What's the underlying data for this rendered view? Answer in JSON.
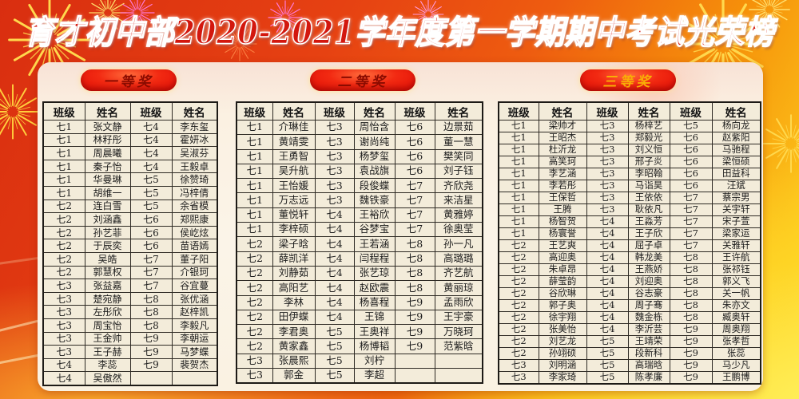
{
  "title": "育才初中部2020-2021学年度第一学期期中考试光荣榜",
  "colors": {
    "title_red": "#d3170e",
    "badge_red": "#e8150a",
    "badge_ink_dark": "#8a0b00",
    "badge_ink_gold": "#f9ae06",
    "cell_background": "#f3ecda",
    "firework_gold": "#ffd84d",
    "firework_pink": "#ff7ad9"
  },
  "sections": [
    {
      "badge": "一等奖",
      "badge_ink": "#8a0b00",
      "table": {
        "headers": [
          "班级",
          "姓名",
          "班级",
          "姓名"
        ],
        "rows": [
          [
            "七1",
            "张文静",
            "七4",
            "李东玺"
          ],
          [
            "七1",
            "林籽彤",
            "七4",
            "霍妍冰"
          ],
          [
            "七1",
            "周晨曦",
            "七4",
            "吴淑芬"
          ],
          [
            "七1",
            "秦子怡",
            "七4",
            "王毅卓"
          ],
          [
            "七1",
            "华曼琳",
            "七5",
            "徐赞琦"
          ],
          [
            "七1",
            "胡维一",
            "七5",
            "冯梓倩"
          ],
          [
            "七2",
            "连白雪",
            "七5",
            "余省模"
          ],
          [
            "七2",
            "刘涵鑫",
            "七6",
            "郑熙康"
          ],
          [
            "七2",
            "孙艺菲",
            "七6",
            "侯屹炫"
          ],
          [
            "七2",
            "于辰奕",
            "七6",
            "苗语嫣"
          ],
          [
            "七2",
            "吴皓",
            "七7",
            "董子阳"
          ],
          [
            "七2",
            "郭慧权",
            "七7",
            "介银珂"
          ],
          [
            "七3",
            "张益嘉",
            "七7",
            "谷宜蔓"
          ],
          [
            "七3",
            "楚宛静",
            "七8",
            "张优涵"
          ],
          [
            "七3",
            "左彤欣",
            "七8",
            "赵梓凯"
          ],
          [
            "七3",
            "周宝怡",
            "七8",
            "李毅凡"
          ],
          [
            "七3",
            "王金帅",
            "七9",
            "李朝运"
          ],
          [
            "七3",
            "王子赫",
            "七9",
            "马梦蝶"
          ],
          [
            "七4",
            "李蕊",
            "七9",
            "裴贺杰"
          ],
          [
            "七4",
            "吴傲然",
            "",
            ""
          ]
        ]
      }
    },
    {
      "badge": "二等奖",
      "badge_ink": "#8a0b00",
      "table": {
        "headers": [
          "班级",
          "姓名",
          "班级",
          "姓名",
          "班级",
          "姓名"
        ],
        "rows": [
          [
            "七1",
            "介琳佳",
            "七3",
            "周怡含",
            "七6",
            "边景茹"
          ],
          [
            "七1",
            "黄靖雯",
            "七3",
            "谢尚纯",
            "七6",
            "董一慧"
          ],
          [
            "七1",
            "王勇智",
            "七3",
            "杨梦玺",
            "七6",
            "樊笑同"
          ],
          [
            "七1",
            "吴升航",
            "七3",
            "袁战旗",
            "七6",
            "刘子钰"
          ],
          [
            "七1",
            "王怡媛",
            "七3",
            "段俊蝶",
            "七7",
            "齐欣尧"
          ],
          [
            "七1",
            "万志远",
            "七3",
            "魏铁豪",
            "七7",
            "来洁星"
          ],
          [
            "七1",
            "董悦轩",
            "七4",
            "王裕欣",
            "七7",
            "黄雅婷"
          ],
          [
            "七1",
            "李梓硕",
            "七4",
            "谷梦宝",
            "七7",
            "徐奥莹"
          ],
          [
            "七2",
            "梁子晗",
            "七4",
            "王若涵",
            "七8",
            "孙一凡"
          ],
          [
            "七2",
            "薛凯洋",
            "七4",
            "闫程程",
            "七8",
            "高璐璐"
          ],
          [
            "七2",
            "刘静茹",
            "七4",
            "张艺琼",
            "七8",
            "齐艺航"
          ],
          [
            "七2",
            "高阳艺",
            "七4",
            "赵欧震",
            "七8",
            "黄丽琼"
          ],
          [
            "七2",
            "李林",
            "七4",
            "杨喜程",
            "七9",
            "孟雨欣"
          ],
          [
            "七2",
            "田伊蝶",
            "七4",
            "王锦",
            "七9",
            "王宇豪"
          ],
          [
            "七2",
            "李君奥",
            "七5",
            "王奥祥",
            "七9",
            "万晓珂"
          ],
          [
            "七2",
            "黄家鑫",
            "七5",
            "杨博韬",
            "七9",
            "范紫晗"
          ],
          [
            "七3",
            "张晨熙",
            "七5",
            "刘柠",
            "",
            ""
          ],
          [
            "七3",
            "郭金",
            "七5",
            "李超",
            "",
            ""
          ]
        ]
      }
    },
    {
      "badge": "三等奖",
      "badge_ink": "#f9ae06",
      "table": {
        "headers": [
          "班级",
          "姓名",
          "班级",
          "姓名",
          "班级",
          "姓名"
        ],
        "rows": [
          [
            "七1",
            "梁帅才",
            "七3",
            "杨梓艺",
            "七5",
            "杨向龙"
          ],
          [
            "七1",
            "王昭杰",
            "七3",
            "郑毅光",
            "七6",
            "赵紫阳"
          ],
          [
            "七1",
            "杜沂龙",
            "七3",
            "刘义恒",
            "七6",
            "马驰程"
          ],
          [
            "七1",
            "高笑珂",
            "七3",
            "邢子炎",
            "七6",
            "梁恒硕"
          ],
          [
            "七1",
            "李艺涵",
            "七3",
            "李昭翰",
            "七6",
            "田益科"
          ],
          [
            "七1",
            "李若彤",
            "七3",
            "马诣昊",
            "七6",
            "汪斌"
          ],
          [
            "七1",
            "王保哲",
            "七3",
            "王依依",
            "七7",
            "蔡宗男"
          ],
          [
            "七1",
            "王腾",
            "七3",
            "耿依凡",
            "七7",
            "关宇轩"
          ],
          [
            "七1",
            "杨智贺",
            "七4",
            "王淼芳",
            "七7",
            "宋子萱"
          ],
          [
            "七1",
            "杨寰誉",
            "七4",
            "王子欣",
            "七7",
            "梁家运"
          ],
          [
            "七2",
            "王艺爽",
            "七4",
            "屈子卓",
            "七7",
            "关雅轩"
          ],
          [
            "七2",
            "高迎奥",
            "七4",
            "韩龙美",
            "七8",
            "王许航"
          ],
          [
            "七2",
            "朱卓昂",
            "七4",
            "王燕娇",
            "七8",
            "张祁钰"
          ],
          [
            "七2",
            "薛莹韵",
            "七4",
            "刘迎奥",
            "七8",
            "郭义飞"
          ],
          [
            "七2",
            "谷欣琳",
            "七4",
            "谷志豪",
            "七8",
            "关一帆"
          ],
          [
            "七2",
            "郭子奥",
            "七4",
            "周子骞",
            "七8",
            "朱亦文"
          ],
          [
            "七2",
            "徐宇翔",
            "七4",
            "魏金栋",
            "七8",
            "臧奥轩"
          ],
          [
            "七2",
            "张美怡",
            "七4",
            "李沂芸",
            "七9",
            "周奥翔"
          ],
          [
            "七2",
            "刘艺龙",
            "七5",
            "王靖荣",
            "七9",
            "张孝哲"
          ],
          [
            "七2",
            "孙翊硕",
            "七5",
            "段新科",
            "七9",
            "张蕊"
          ],
          [
            "七3",
            "刘明涵",
            "七5",
            "高瑞晗",
            "七9",
            "马少凡"
          ],
          [
            "七3",
            "李家琦",
            "七5",
            "陈孝廉",
            "七9",
            "王鹏博"
          ]
        ]
      }
    }
  ]
}
